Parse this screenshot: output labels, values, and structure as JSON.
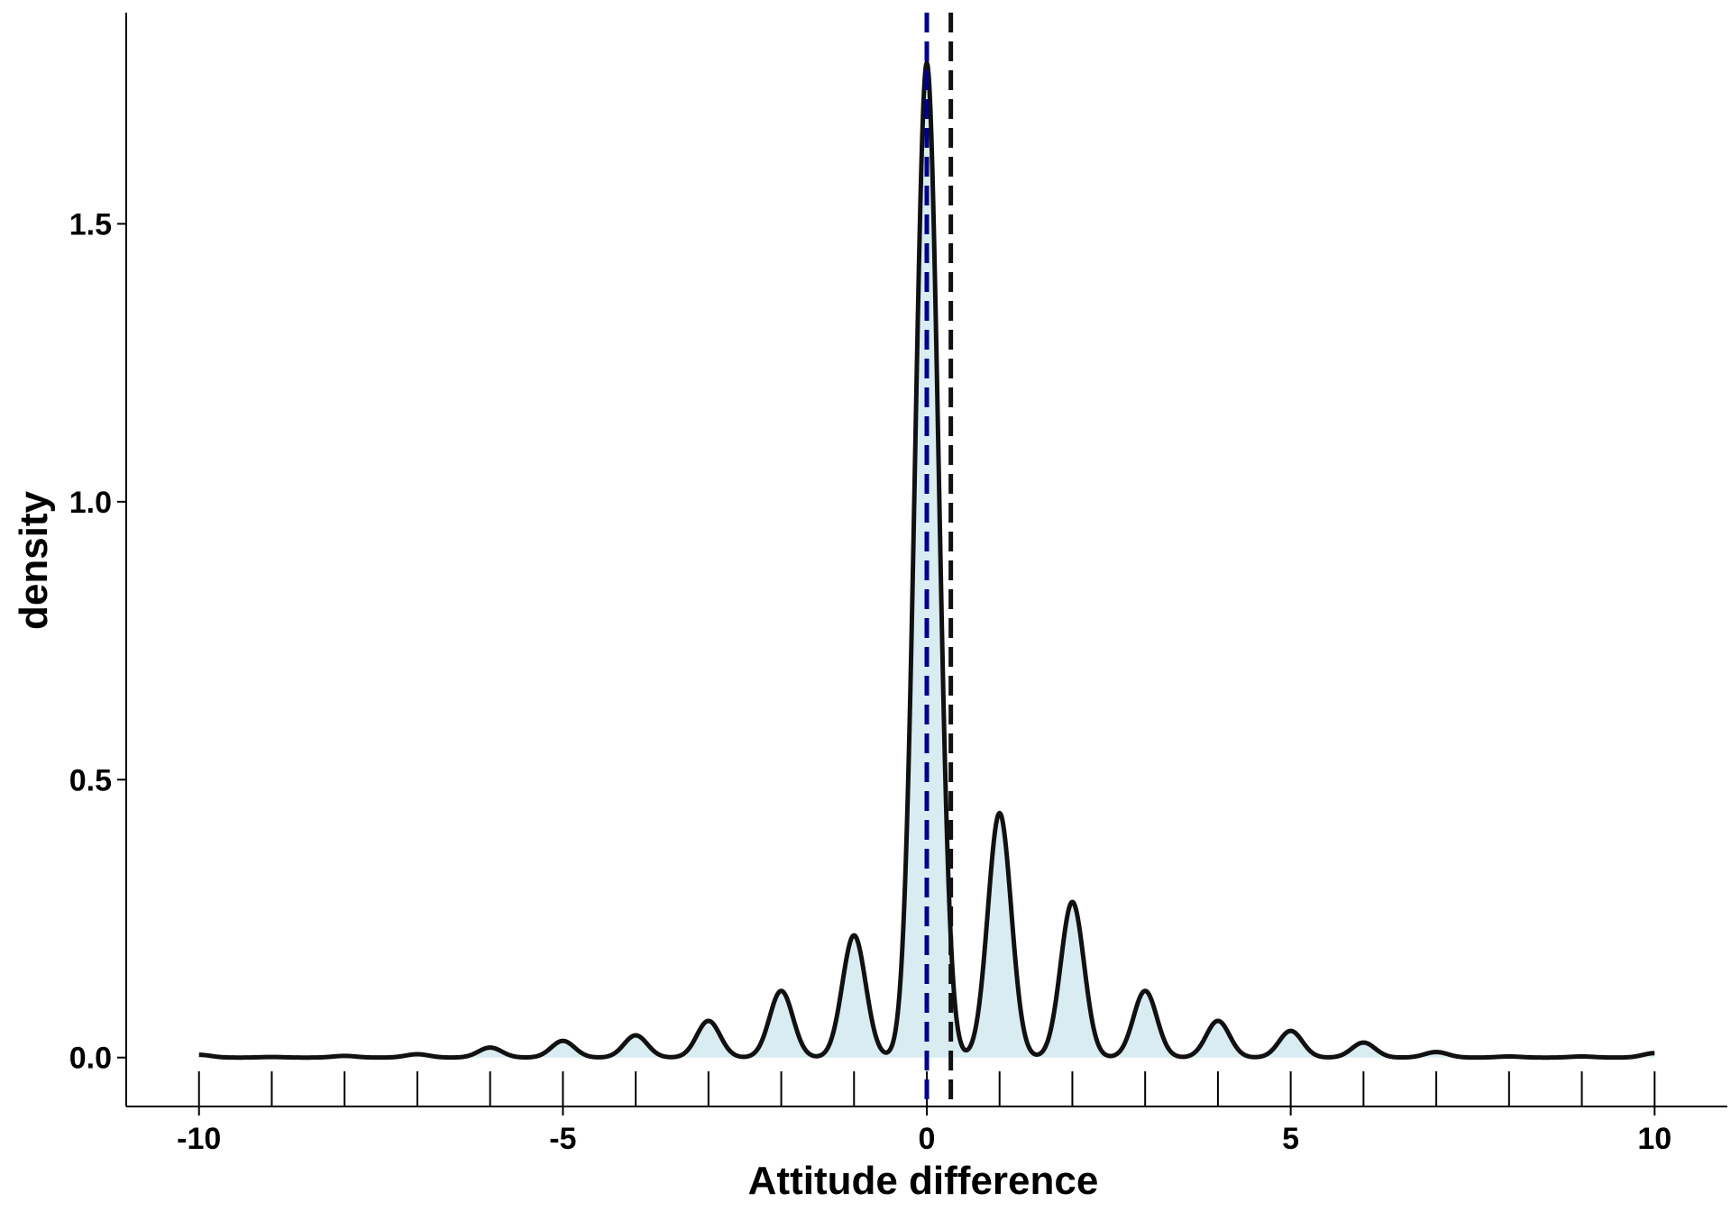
{
  "chart_data": {
    "type": "area",
    "title": "",
    "xlabel": "Attitude difference",
    "ylabel": "density",
    "xlim": [
      -11,
      11
    ],
    "ylim": [
      -0.088,
      1.88
    ],
    "x_ticks": [
      -10,
      -5,
      0,
      5,
      10
    ],
    "x_tick_labels": [
      "-10",
      "-5",
      "0",
      "5",
      "10"
    ],
    "y_ticks": [
      0.0,
      0.5,
      1.0,
      1.5
    ],
    "y_tick_labels": [
      "0.0",
      "0.5",
      "1.0",
      "1.5"
    ],
    "grid": false,
    "fill_color": "#d8ecf2",
    "line_color": "#111111",
    "series": [
      {
        "x": [
          -10,
          -9,
          -8,
          -7,
          -6,
          -5,
          -4,
          -3,
          -2,
          -1,
          0,
          1,
          2,
          3,
          4,
          5,
          6,
          7,
          8,
          9,
          10
        ],
        "values": [
          0.005,
          0.001,
          0.003,
          0.006,
          0.018,
          0.03,
          0.04,
          0.066,
          0.12,
          0.22,
          1.79,
          0.44,
          0.28,
          0.12,
          0.066,
          0.048,
          0.027,
          0.01,
          0.002,
          0.002,
          0.008
        ]
      }
    ],
    "rug_x": [
      -10,
      -9,
      -8,
      -7,
      -6,
      -5,
      -4,
      -3,
      -2,
      -1,
      0,
      1,
      2,
      3,
      4,
      5,
      6,
      7,
      8,
      9,
      10
    ],
    "reference_lines": [
      {
        "x": 0.0,
        "color": "#00008b",
        "style": "dashed"
      },
      {
        "x": 0.33,
        "color": "#111111",
        "style": "dashed"
      }
    ]
  }
}
